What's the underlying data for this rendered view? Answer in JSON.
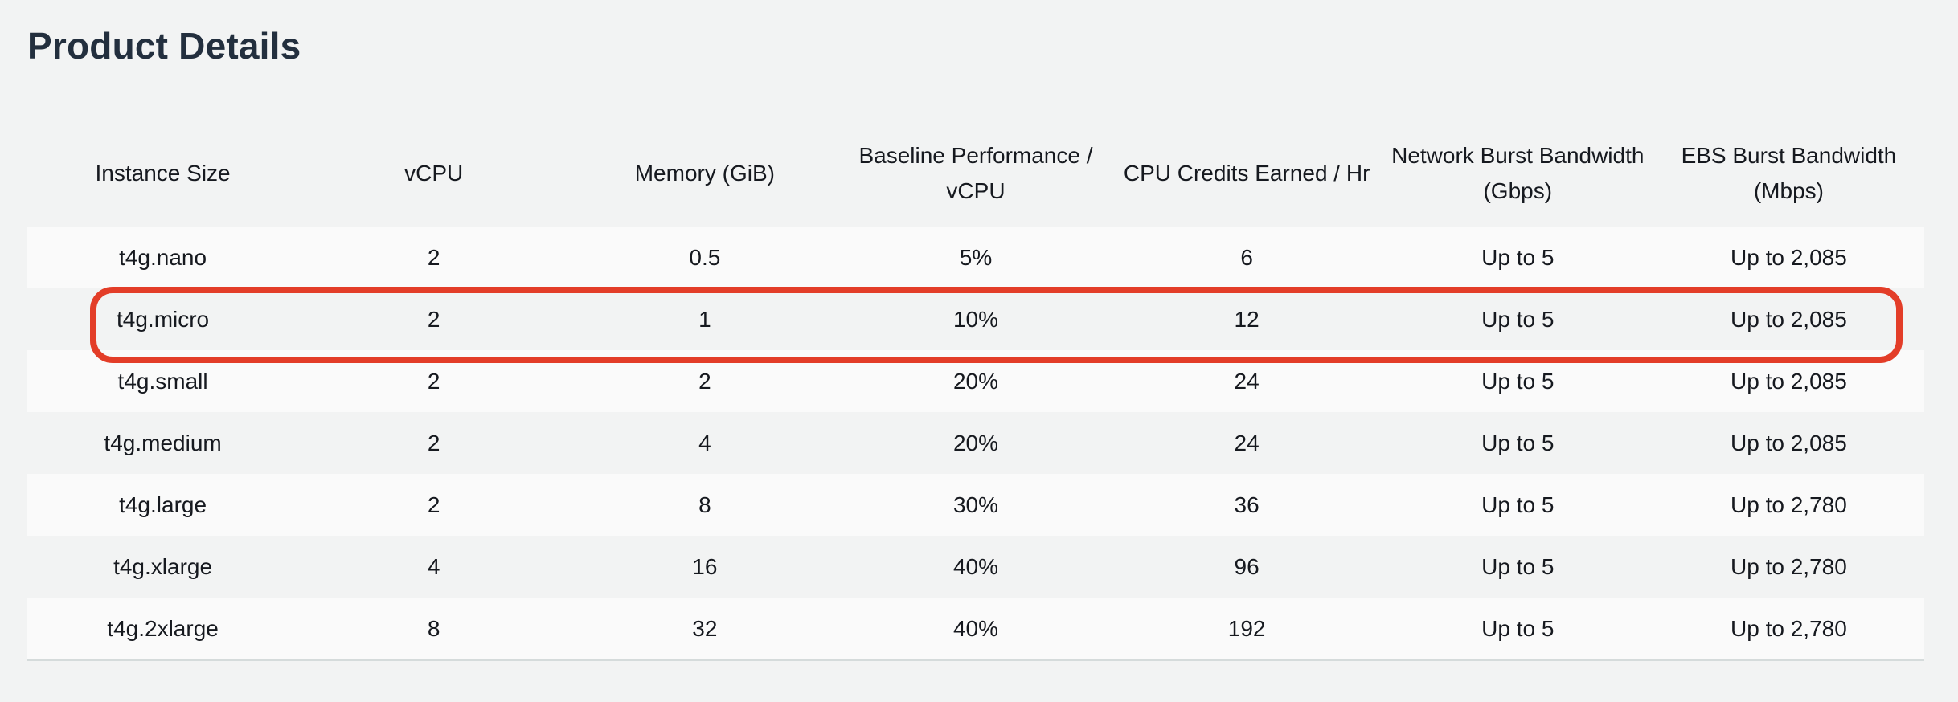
{
  "page": {
    "title": "Product Details"
  },
  "table": {
    "headers": [
      "Instance Size",
      "vCPU",
      "Memory (GiB)",
      "Baseline Performance / vCPU",
      "CPU Credits Earned / Hr",
      "Network Burst Bandwidth (Gbps)",
      "EBS Burst Bandwidth (Mbps)"
    ],
    "rows": [
      [
        "t4g.nano",
        "2",
        "0.5",
        "5%",
        "6",
        "Up to 5",
        "Up to 2,085"
      ],
      [
        "t4g.micro",
        "2",
        "1",
        "10%",
        "12",
        "Up to 5",
        "Up to 2,085"
      ],
      [
        "t4g.small",
        "2",
        "2",
        "20%",
        "24",
        "Up to 5",
        "Up to 2,085"
      ],
      [
        "t4g.medium",
        "2",
        "4",
        "20%",
        "24",
        "Up to 5",
        "Up to 2,085"
      ],
      [
        "t4g.large",
        "2",
        "8",
        "30%",
        "36",
        "Up to 5",
        "Up to 2,780"
      ],
      [
        "t4g.xlarge",
        "4",
        "16",
        "40%",
        "96",
        "Up to 5",
        "Up to 2,780"
      ],
      [
        "t4g.2xlarge",
        "8",
        "32",
        "40%",
        "192",
        "Up to 5",
        "Up to 2,780"
      ]
    ]
  },
  "colors": {
    "background": "#f2f3f3",
    "title": "#232f3e",
    "highlight_outline": "#e33d28"
  }
}
